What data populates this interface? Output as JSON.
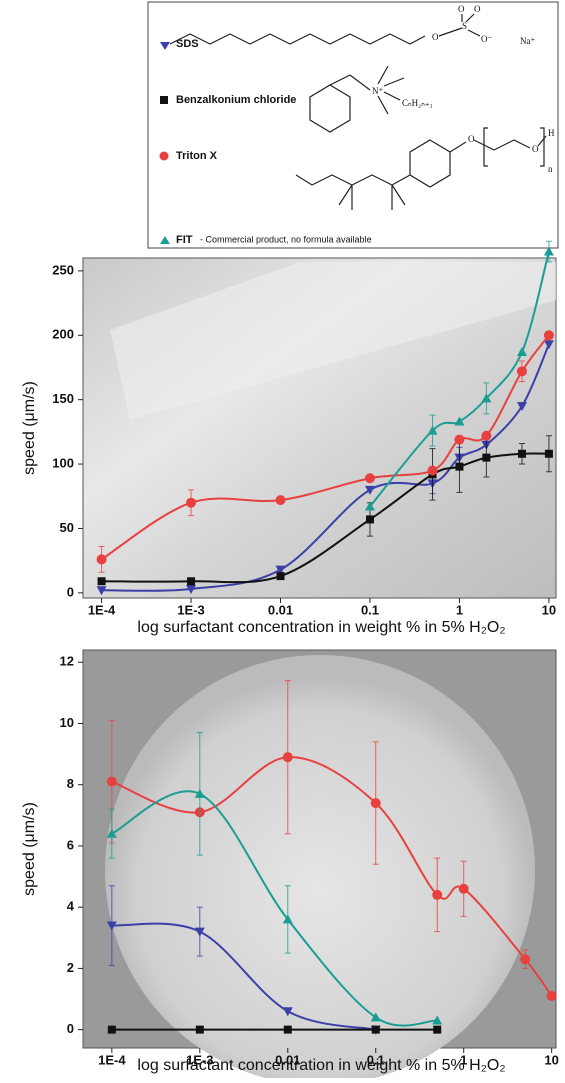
{
  "legend": {
    "entries": [
      "SDS",
      "Benzalkonium chloride",
      "Triton X",
      "FIT"
    ],
    "note": "- Commercial product, no formula available",
    "structure_labels": [
      "O",
      "O",
      "S",
      "O",
      "O⁻",
      "Na⁺",
      "N⁺",
      "CₙH₂ₙ₊₁",
      "O",
      "O",
      "H",
      "n"
    ]
  },
  "chart_data": [
    {
      "type": "scatter",
      "y_label": "speed (μm/s)",
      "x_label": "log surfactant concentration in weight % in 5% H₂O₂",
      "log_x": true,
      "xlim": [
        6.2e-05,
        12
      ],
      "ylim": [
        -4,
        260
      ],
      "xticks": [
        {
          "value": 0.0001,
          "label": "1E-4"
        },
        {
          "value": 0.001,
          "label": "1E-3"
        },
        0.01,
        0.1,
        1,
        10
      ],
      "yticks": [
        0,
        50,
        100,
        150,
        200,
        250
      ],
      "series": [
        {
          "color": "#3b3fa8",
          "marker": "triangle-down",
          "x": [
            0.0001,
            0.001,
            0.01,
            0.1,
            0.5,
            1,
            2,
            5,
            10
          ],
          "values": [
            2,
            3,
            18,
            80,
            85,
            105,
            115,
            145,
            193
          ],
          "errors": [
            null,
            null,
            null,
            null,
            8,
            8,
            null,
            null,
            null
          ]
        },
        {
          "color": "#111111",
          "marker": "square",
          "x": [
            0.0001,
            0.001,
            0.01,
            0.1,
            0.5,
            1,
            2,
            5,
            10
          ],
          "values": [
            9,
            9,
            13,
            57,
            92,
            98,
            105,
            108,
            108
          ],
          "errors": [
            null,
            null,
            null,
            13,
            20,
            20,
            15,
            8,
            14
          ]
        },
        {
          "color": "#e8403f",
          "marker": "circle",
          "x": [
            0.0001,
            0.001,
            0.01,
            0.1,
            0.5,
            1,
            2,
            5,
            10
          ],
          "values": [
            26,
            70,
            72,
            89,
            95,
            119,
            122,
            172,
            200
          ],
          "errors": [
            10,
            10,
            null,
            null,
            null,
            null,
            null,
            8,
            null
          ]
        },
        {
          "color": "#1a9e93",
          "marker": "triangle-up",
          "x": [
            0.1,
            0.5,
            1,
            2,
            5,
            10
          ],
          "values": [
            67,
            126,
            133,
            151,
            187,
            265
          ],
          "errors": [
            null,
            12,
            null,
            12,
            null,
            8
          ]
        }
      ]
    },
    {
      "type": "scatter",
      "y_label": "speed (μm/s)",
      "x_label": "log surfactant concentration in weight % in 5% H₂O₂",
      "log_x": true,
      "xlim": [
        4.7e-05,
        11.2
      ],
      "ylim": [
        -0.6,
        12.4
      ],
      "xticks": [
        {
          "value": 0.0001,
          "label": "1E-4"
        },
        {
          "value": 0.001,
          "label": "1E-3"
        },
        0.01,
        0.1,
        1,
        10
      ],
      "yticks": [
        0,
        2,
        4,
        6,
        8,
        10,
        12
      ],
      "series": [
        {
          "color": "#3b3fa8",
          "marker": "triangle-down",
          "x": [
            0.0001,
            0.001,
            0.01,
            0.1
          ],
          "values": [
            3.4,
            3.2,
            0.6,
            0
          ],
          "errors": [
            1.3,
            0.8,
            null,
            null
          ]
        },
        {
          "color": "#111111",
          "marker": "square",
          "x": [
            0.0001,
            0.001,
            0.01,
            0.1,
            0.5
          ],
          "values": [
            0,
            0,
            0,
            0,
            0
          ],
          "errors": [
            null,
            null,
            null,
            null,
            null
          ]
        },
        {
          "color": "#e8403f",
          "marker": "circle",
          "x": [
            0.0001,
            0.001,
            0.01,
            0.1,
            0.5,
            1,
            5,
            10
          ],
          "values": [
            8.1,
            7.1,
            8.9,
            7.4,
            4.4,
            4.6,
            2.3,
            1.1
          ],
          "errors": [
            2,
            null,
            2.5,
            2,
            1.2,
            0.9,
            0.3,
            null
          ]
        },
        {
          "color": "#1a9e93",
          "marker": "triangle-up",
          "x": [
            0.0001,
            0.001,
            0.01,
            0.1,
            0.5
          ],
          "values": [
            6.4,
            7.7,
            3.6,
            0.4,
            0.3
          ],
          "errors": [
            0.8,
            2,
            1.1,
            null,
            null
          ]
        }
      ]
    }
  ]
}
